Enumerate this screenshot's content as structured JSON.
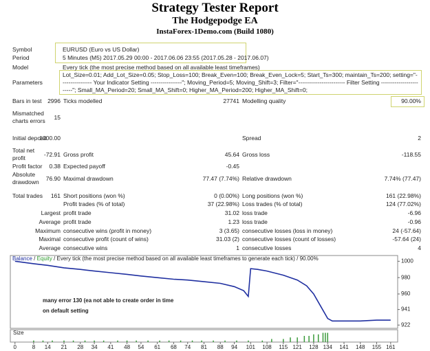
{
  "header": {
    "title": "Strategy Tester Report",
    "subtitle": "The Hodgepodge EA",
    "server": "InstaForex-1Demo.com (Build 1080)"
  },
  "info": [
    {
      "label": "Symbol",
      "value": "EURUSD (Euro vs US Dollar)"
    },
    {
      "label": "Period",
      "value": "5 Minutes (M5) 2017.05.29 00:00 - 2017.06.06 23:55 (2017.05.28 - 2017.06.07)"
    },
    {
      "label": "Model",
      "value": "Every tick (the most precise method based on all available least timeframes)"
    },
    {
      "label": "Parameters",
      "value": "Lot_Size=0.01; Add_Lot_Size=0.05; Stop_Loss=100; Break_Even=100; Break_Even_Lock=5; Start_Ts=300; maintain_Ts=200; setting=\"---------------- Your Indicator Setting ----------------\"; Moving_Period=5; Moving_Shift=3; Filter=\"------------------------ Filter Setting ------------------------\"; Small_MA_Period=20; Small_MA_Shift=0; Higher_MA_Period=200; Higher_MA_Shift=0;"
    }
  ],
  "stats": {
    "rows": [
      [
        "Bars in test",
        "2996",
        "Ticks modelled",
        "27741",
        "Modelling quality",
        "90.00%"
      ],
      [
        "Mismatched charts errors",
        "15",
        null,
        null,
        null,
        null
      ],
      [
        "Initial deposit",
        "1000.00",
        null,
        null,
        "Spread",
        "2"
      ],
      [
        "Total net profit",
        "-72.91",
        "Gross profit",
        "45.64",
        "Gross loss",
        "-118.55"
      ],
      [
        "Profit factor",
        "0.38",
        "Expected payoff",
        "-0.45",
        null,
        null
      ],
      [
        "Absolute drawdown",
        "76.90",
        "Maximal drawdown",
        "77.47 (7.74%)",
        "Relative drawdown",
        "7.74% (77.47)"
      ],
      [
        "Total trades",
        "161",
        "Short positions (won %)",
        "0 (0.00%)",
        "Long positions (won %)",
        "161 (22.98%)"
      ],
      [
        null,
        null,
        "Profit trades (% of total)",
        "37 (22.98%)",
        "Loss trades (% of total)",
        "124 (77.02%)"
      ],
      [
        null,
        "Largest",
        "profit trade",
        "31.02",
        "loss trade",
        "-6.96"
      ],
      [
        null,
        "Average",
        "profit trade",
        "1.23",
        "loss trade",
        "-0.96"
      ],
      [
        null,
        "Maximum",
        "consecutive wins (profit in money)",
        "3 (3.65)",
        "consecutive losses (loss in money)",
        "24 (-57.64)"
      ],
      [
        null,
        "Maximal",
        "consecutive profit (count of wins)",
        "31.03 (2)",
        "consecutive losses (count of losses)",
        "-57.64 (24)"
      ],
      [
        null,
        "Average",
        "consecutive wins",
        "1",
        "consecutive losses",
        "4"
      ]
    ]
  },
  "chart": {
    "type": "line",
    "legend": {
      "items": [
        {
          "text": "Balance",
          "color": "#1f2fa0"
        },
        {
          "text": "Equity",
          "color": "#2a9a2a"
        },
        {
          "text": "Every tick (the most precise method based on all available least timeframes to generate each tick)",
          "color": "#222222"
        },
        {
          "text": "90.00%",
          "color": "#222222"
        }
      ],
      "separator": " / "
    },
    "annotation": [
      "many error 130 (ea not able to create order in time",
      "on default setting"
    ],
    "xlim": [
      -2,
      164
    ],
    "xticks": [
      0,
      8,
      14,
      21,
      28,
      34,
      41,
      48,
      54,
      61,
      68,
      74,
      81,
      88,
      94,
      101,
      108,
      115,
      121,
      128,
      134,
      141,
      148,
      155,
      161
    ],
    "ylim": [
      918,
      1007
    ],
    "yticks": [
      1000,
      980,
      960,
      941,
      922
    ],
    "balance": {
      "color": "#1f2fa0",
      "x": [
        0,
        8,
        14,
        21,
        28,
        34,
        41,
        48,
        54,
        61,
        68,
        74,
        81,
        88,
        94,
        98,
        100,
        101,
        104,
        108,
        115,
        121,
        125,
        128,
        131,
        134,
        136,
        141,
        148,
        155,
        161
      ],
      "values": [
        1000,
        997,
        995,
        992,
        990,
        988,
        986,
        984,
        982,
        980,
        978,
        977,
        975,
        973,
        969,
        964,
        957,
        991,
        990,
        988,
        983,
        977,
        970,
        960,
        945,
        930,
        927,
        927,
        927,
        928,
        928
      ]
    },
    "size": {
      "label": "Size",
      "color": "#3a9a3a",
      "ylim": [
        0,
        0.08
      ],
      "x": [
        8,
        12,
        16,
        21,
        25,
        30,
        34,
        38,
        44,
        48,
        52,
        57,
        62,
        66,
        71,
        76,
        80,
        85,
        90,
        95,
        100,
        106,
        110,
        115,
        118,
        121,
        124,
        126,
        128,
        130,
        132,
        133,
        134
      ],
      "values": [
        0.01,
        0.01,
        0.01,
        0.01,
        0.01,
        0.01,
        0.01,
        0.01,
        0.01,
        0.01,
        0.01,
        0.01,
        0.01,
        0.01,
        0.01,
        0.01,
        0.01,
        0.01,
        0.01,
        0.01,
        0.01,
        0.01,
        0.02,
        0.02,
        0.03,
        0.03,
        0.04,
        0.04,
        0.05,
        0.05,
        0.06,
        0.06,
        0.06
      ]
    }
  }
}
